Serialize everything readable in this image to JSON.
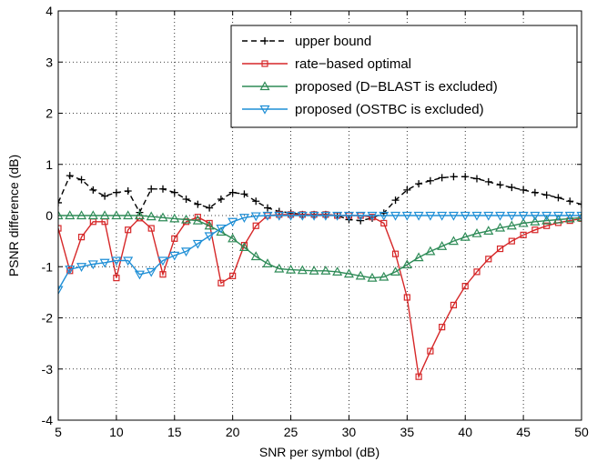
{
  "chart_data": {
    "type": "line",
    "title": "",
    "xlabel": "SNR per symbol (dB)",
    "ylabel": "PSNR difference (dB)",
    "xlim": [
      5,
      50
    ],
    "ylim": [
      -4,
      4
    ],
    "xticks": [
      5,
      10,
      15,
      20,
      25,
      30,
      35,
      40,
      45,
      50
    ],
    "yticks": [
      -4,
      -3,
      -2,
      -1,
      0,
      1,
      2,
      3,
      4
    ],
    "grid": true,
    "legend_position": "top-right",
    "x": [
      5,
      6,
      7,
      8,
      9,
      10,
      11,
      12,
      13,
      14,
      15,
      16,
      17,
      18,
      19,
      20,
      21,
      22,
      23,
      24,
      25,
      26,
      27,
      28,
      29,
      30,
      31,
      32,
      33,
      34,
      35,
      36,
      37,
      38,
      39,
      40,
      41,
      42,
      43,
      44,
      45,
      46,
      47,
      48,
      49,
      50
    ],
    "series": [
      {
        "name": "upper bound",
        "color": "#000000",
        "marker": "plus",
        "dashed": true,
        "values": [
          0.25,
          0.78,
          0.7,
          0.5,
          0.38,
          0.45,
          0.48,
          0.06,
          0.52,
          0.52,
          0.45,
          0.32,
          0.22,
          0.15,
          0.32,
          0.45,
          0.42,
          0.28,
          0.15,
          0.08,
          0.05,
          0.02,
          0.02,
          0.02,
          0.0,
          -0.08,
          -0.1,
          -0.05,
          0.05,
          0.3,
          0.5,
          0.62,
          0.68,
          0.74,
          0.76,
          0.76,
          0.72,
          0.66,
          0.6,
          0.55,
          0.5,
          0.45,
          0.4,
          0.35,
          0.28,
          0.22
        ]
      },
      {
        "name": "rate−based optimal",
        "color": "#d62728",
        "marker": "square",
        "dashed": false,
        "values": [
          -0.25,
          -1.08,
          -0.42,
          -0.12,
          -0.12,
          -1.22,
          -0.28,
          -0.05,
          -0.25,
          -1.15,
          -0.45,
          -0.12,
          -0.03,
          -0.15,
          -1.32,
          -1.18,
          -0.58,
          -0.2,
          0.0,
          0.02,
          0.02,
          0.02,
          0.02,
          0.02,
          0.0,
          0.0,
          0.0,
          -0.03,
          -0.15,
          -0.75,
          -1.6,
          -3.15,
          -2.65,
          -2.18,
          -1.75,
          -1.38,
          -1.1,
          -0.85,
          -0.65,
          -0.5,
          -0.38,
          -0.28,
          -0.2,
          -0.14,
          -0.1,
          -0.06
        ]
      },
      {
        "name": "proposed (D−BLAST is excluded)",
        "color": "#2e8b57",
        "marker": "triangle-up",
        "dashed": false,
        "values": [
          0.0,
          0.0,
          0.0,
          0.0,
          0.0,
          0.0,
          0.0,
          0.0,
          -0.02,
          -0.04,
          -0.06,
          -0.08,
          -0.1,
          -0.2,
          -0.32,
          -0.45,
          -0.62,
          -0.8,
          -0.94,
          -1.04,
          -1.06,
          -1.07,
          -1.08,
          -1.08,
          -1.1,
          -1.14,
          -1.18,
          -1.22,
          -1.2,
          -1.1,
          -0.96,
          -0.82,
          -0.7,
          -0.6,
          -0.5,
          -0.42,
          -0.35,
          -0.3,
          -0.24,
          -0.2,
          -0.15,
          -0.12,
          -0.1,
          -0.08,
          -0.06,
          -0.04
        ]
      },
      {
        "name": "proposed (OSTBC is excluded)",
        "color": "#1f8fd6",
        "marker": "triangle-down",
        "dashed": false,
        "values": [
          -1.45,
          -1.05,
          -1.0,
          -0.95,
          -0.92,
          -0.88,
          -0.88,
          -1.15,
          -1.1,
          -0.88,
          -0.78,
          -0.7,
          -0.55,
          -0.4,
          -0.25,
          -0.12,
          -0.04,
          -0.01,
          0.0,
          0.0,
          0.0,
          0.0,
          0.0,
          0.0,
          0.0,
          0.0,
          0.0,
          0.0,
          0.0,
          0.0,
          0.0,
          0.0,
          0.0,
          0.0,
          0.0,
          0.0,
          0.0,
          0.0,
          0.0,
          0.0,
          0.0,
          0.0,
          0.0,
          0.0,
          0.0,
          0.0
        ]
      }
    ]
  }
}
